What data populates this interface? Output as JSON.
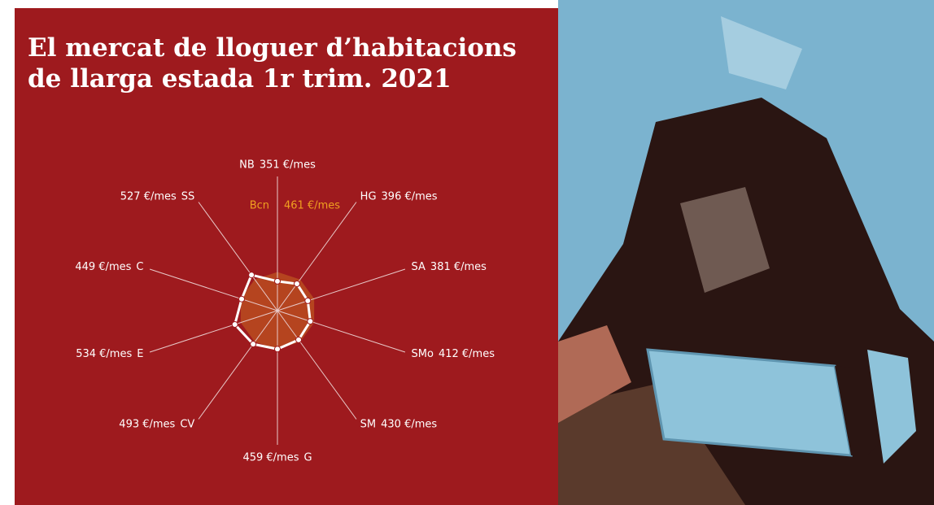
{
  "chart_data": {
    "type": "radar",
    "title": "El mercat de lloguer d’habitacions de llarga estada 1r trim. 2021",
    "categories": [
      "NB",
      "HG",
      "SA",
      "SMo",
      "SM",
      "G",
      "CV",
      "E",
      "C",
      "SS"
    ],
    "values": [
      351,
      396,
      381,
      412,
      430,
      459,
      493,
      534,
      449,
      527
    ],
    "value_labels": [
      "351 €/mes",
      "396 €/mes",
      "381 €/mes",
      "412 €/mes",
      "430 €/mes",
      "459 €/mes",
      "493 €/mes",
      "534 €/mes",
      "449 €/mes",
      "527 €/mes"
    ],
    "color": "#ffffff",
    "reference": {
      "name": "Bcn",
      "value": 461,
      "value_label": "461 €/mes",
      "color": "#f0a020",
      "fill": "#b5441f"
    }
  }
}
